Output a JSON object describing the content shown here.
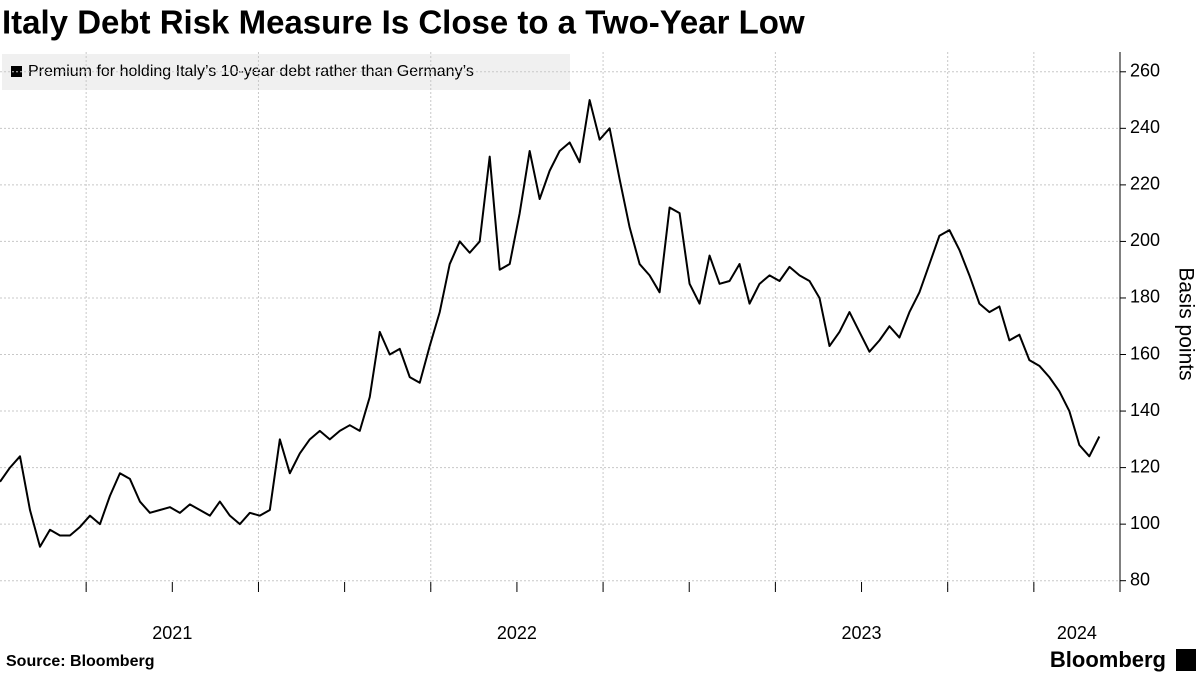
{
  "chart_data": {
    "type": "line",
    "title": "Italy Debt Risk Measure Is Close to a Two-Year Low",
    "y_label": "Basis points",
    "source": "Source: Bloomberg",
    "brand": "Bloomberg",
    "series": [
      {
        "name": "Premium for holding Italy’s 10-year debt rather than Germany’s",
        "color": "#000000",
        "values": [
          115,
          120,
          124,
          105,
          92,
          98,
          96,
          96,
          99,
          103,
          100,
          110,
          118,
          116,
          108,
          104,
          105,
          106,
          104,
          107,
          105,
          103,
          108,
          103,
          100,
          104,
          103,
          105,
          130,
          118,
          125,
          130,
          133,
          130,
          133,
          135,
          133,
          145,
          168,
          160,
          162,
          152,
          150,
          163,
          175,
          192,
          200,
          196,
          200,
          230,
          190,
          192,
          210,
          232,
          215,
          225,
          232,
          235,
          228,
          250,
          236,
          240,
          222,
          205,
          192,
          188,
          182,
          212,
          210,
          185,
          178,
          195,
          185,
          186,
          192,
          178,
          185,
          188,
          186,
          191,
          188,
          186,
          180,
          163,
          168,
          175,
          168,
          161,
          165,
          170,
          166,
          175,
          182,
          192,
          202,
          204,
          197,
          188,
          178,
          175,
          177,
          165,
          167,
          158,
          156,
          152,
          147,
          140,
          128,
          124,
          131
        ]
      }
    ],
    "x": [
      2021,
      2021.029,
      2021.058,
      2021.087,
      2021.116,
      2021.145,
      2021.174,
      2021.203,
      2021.232,
      2021.261,
      2021.29,
      2021.319,
      2021.348,
      2021.377,
      2021.406,
      2021.435,
      2021.464,
      2021.493,
      2021.522,
      2021.551,
      2021.58,
      2021.609,
      2021.638,
      2021.667,
      2021.696,
      2021.725,
      2021.754,
      2021.783,
      2021.812,
      2021.841,
      2021.87,
      2021.899,
      2021.928,
      2021.957,
      2021.986,
      2022.015,
      2022.044,
      2022.073,
      2022.102,
      2022.131,
      2022.16,
      2022.189,
      2022.218,
      2022.247,
      2022.276,
      2022.305,
      2022.334,
      2022.363,
      2022.392,
      2022.421,
      2022.45,
      2022.479,
      2022.508,
      2022.537,
      2022.566,
      2022.595,
      2022.624,
      2022.653,
      2022.682,
      2022.711,
      2022.74,
      2022.769,
      2022.798,
      2022.827,
      2022.856,
      2022.885,
      2022.914,
      2022.943,
      2022.972,
      2023.001,
      2023.03,
      2023.059,
      2023.088,
      2023.117,
      2023.146,
      2023.175,
      2023.204,
      2023.233,
      2023.262,
      2023.291,
      2023.32,
      2023.349,
      2023.378,
      2023.407,
      2023.436,
      2023.465,
      2023.494,
      2023.523,
      2023.552,
      2023.581,
      2023.61,
      2023.639,
      2023.668,
      2023.697,
      2023.726,
      2023.755,
      2023.784,
      2023.813,
      2023.842,
      2023.871,
      2023.9,
      2023.929,
      2023.958,
      2023.987,
      2024.016,
      2024.045,
      2024.074,
      2024.103,
      2024.132,
      2024.161,
      2024.19
    ],
    "xlim": [
      2021,
      2024.25
    ],
    "xticks": [
      {
        "value": 2021.5,
        "label": "2021"
      },
      {
        "value": 2022.5,
        "label": "2022"
      },
      {
        "value": 2023.5,
        "label": "2023"
      },
      {
        "value": 2024.125,
        "label": "2024"
      }
    ],
    "xgrid": [
      2021.25,
      2021.75,
      2022.25,
      2022.75,
      2023.25,
      2023.75,
      2024
    ],
    "xtick_marks": [
      2021.25,
      2021.5,
      2021.75,
      2022,
      2022.25,
      2022.5,
      2022.75,
      2023,
      2023.25,
      2023.5,
      2023.75,
      2024
    ],
    "ylim": [
      76,
      267
    ],
    "yticks": [
      80,
      100,
      120,
      140,
      160,
      180,
      200,
      220,
      240,
      260
    ],
    "grid": true
  }
}
